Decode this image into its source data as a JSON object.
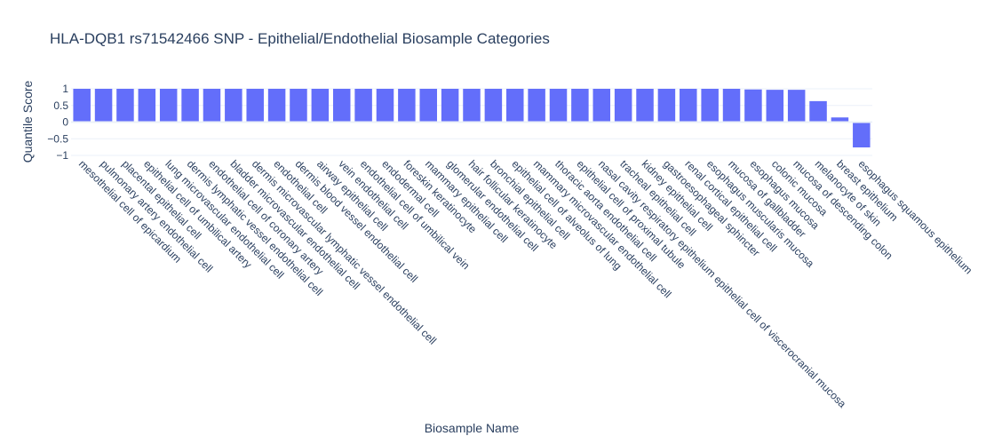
{
  "chart_data": {
    "type": "bar",
    "title": "HLA-DQB1 rs71542466 SNP - Epithelial/Endothelial Biosample Categories",
    "xlabel": "Biosample Name",
    "ylabel": "Quantile Score",
    "ylim": [
      -1,
      1
    ],
    "yticks": [
      1,
      0.5,
      0,
      -0.5,
      -1
    ],
    "ytick_labels": [
      "1",
      "0.5",
      "0",
      "−0.5",
      "−1"
    ],
    "grid": true,
    "bar_color": "#636efa",
    "categories": [
      "mesothelial cell of epicardium",
      "pulmonary artery endothelial cell",
      "placental epithelial cell",
      "epithelial cell of umbilical artery",
      "lung microvascular endothelial cell",
      "dermis lymphatic vessel endothelial cell",
      "endothelial cell of coronary artery",
      "bladder microvascular endothelial cell",
      "dermis microvascular lymphatic vessel endothelial cell",
      "endothelial cell",
      "dermis blood vessel endothelial cell",
      "airway epithelial cell",
      "vein endothelial cell",
      "endothelial cell of umbilical vein",
      "endodermal cell",
      "foreskin keratinocyte",
      "mammary epithelial cell",
      "glomerular endothelial cell",
      "hair follicular keratinocyte",
      "bronchial epithelial cell",
      "epithelial cell of alveolus of lung",
      "mammary microvascular endothelial cell",
      "thoracic aorta endothelial cell",
      "epithelial cell of proximal tubule",
      "nasal cavity respiratory epithelium epithelial cell of viscerocranial mucosa",
      "tracheal epithelial cell",
      "kidney epithelial cell",
      "gastroesophageal sphincter",
      "renal cortical epithelial cell",
      "esophagus muscularis mucosa",
      "mucosa of gallbladder",
      "esophagus mucosa",
      "colonic mucosa",
      "mucosa of descending colon",
      "melanocyte of skin",
      "breast epithelium",
      "esophagus squamous epithelium"
    ],
    "values": [
      1,
      1,
      1,
      1,
      1,
      1,
      1,
      1,
      1,
      1,
      1,
      1,
      1,
      1,
      1,
      1,
      1,
      1,
      1,
      1,
      1,
      1,
      1,
      1,
      1,
      1,
      1,
      1,
      1,
      1,
      1,
      0.98,
      0.97,
      0.97,
      0.63,
      0.14,
      -0.76
    ]
  }
}
